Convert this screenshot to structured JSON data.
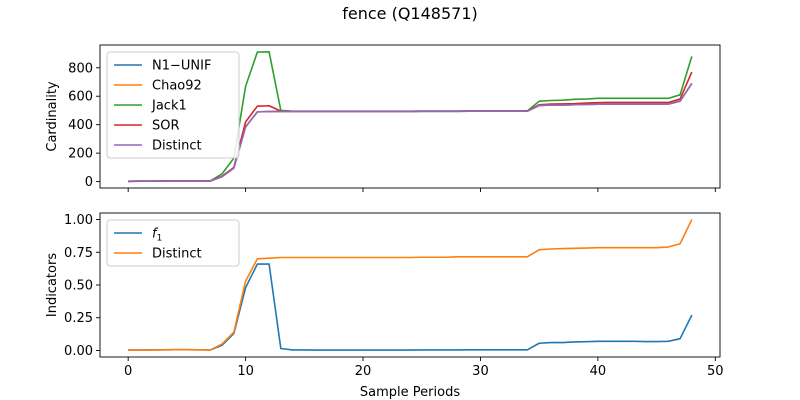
{
  "figure": {
    "suptitle": "fence (Q148571)",
    "shared_xlabel": "Sample Periods"
  },
  "chart_data": [
    {
      "type": "line",
      "title": "",
      "xlabel": "",
      "ylabel": "Cardinality",
      "xlim": [
        -2.4,
        50.4
      ],
      "ylim": [
        -45,
        960
      ],
      "xticks": [
        0,
        10,
        20,
        30,
        40,
        50
      ],
      "yticks": [
        0,
        200,
        400,
        600,
        800
      ],
      "grid": false,
      "legend_position": "upper-left",
      "x": [
        0,
        1,
        2,
        3,
        4,
        5,
        6,
        7,
        8,
        9,
        10,
        11,
        12,
        13,
        14,
        15,
        16,
        17,
        18,
        19,
        20,
        21,
        22,
        23,
        24,
        25,
        26,
        27,
        28,
        29,
        30,
        31,
        32,
        33,
        34,
        35,
        36,
        37,
        38,
        39,
        40,
        41,
        42,
        43,
        44,
        45,
        46,
        47,
        48
      ],
      "series": [
        {
          "name": "N1−UNIF",
          "color": "#1f77b4",
          "values": [
            2,
            3,
            3,
            4,
            5,
            5,
            5,
            4,
            35,
            95,
            385,
            490,
            492,
            493,
            493,
            493,
            493,
            493,
            493,
            493,
            493,
            493,
            493,
            493,
            493,
            494,
            494,
            494,
            494,
            495,
            495,
            495,
            495,
            495,
            495,
            535,
            538,
            538,
            540,
            542,
            544,
            545,
            545,
            545,
            545,
            545,
            545,
            565,
            690
          ]
        },
        {
          "name": "Chao92",
          "color": "#ff7f0e",
          "values": [
            2,
            3,
            3,
            4,
            5,
            5,
            5,
            4,
            35,
            95,
            385,
            490,
            492,
            493,
            493,
            493,
            493,
            493,
            493,
            493,
            493,
            493,
            493,
            493,
            493,
            494,
            494,
            494,
            494,
            495,
            495,
            495,
            495,
            495,
            495,
            535,
            538,
            538,
            540,
            542,
            544,
            545,
            545,
            545,
            545,
            545,
            545,
            565,
            690
          ]
        },
        {
          "name": "Jack1",
          "color": "#2ca02c",
          "values": [
            3,
            4,
            4,
            5,
            6,
            6,
            6,
            5,
            55,
            165,
            670,
            910,
            912,
            500,
            495,
            495,
            495,
            495,
            495,
            495,
            495,
            495,
            495,
            495,
            495,
            496,
            496,
            496,
            496,
            497,
            497,
            497,
            497,
            497,
            497,
            565,
            570,
            572,
            578,
            580,
            585,
            585,
            585,
            585,
            585,
            585,
            585,
            610,
            880
          ]
        },
        {
          "name": "SOR",
          "color": "#d62728",
          "values": [
            2,
            3,
            3,
            4,
            5,
            5,
            5,
            4,
            38,
            100,
            420,
            530,
            533,
            495,
            494,
            494,
            494,
            494,
            494,
            494,
            494,
            494,
            494,
            494,
            494,
            495,
            495,
            495,
            495,
            496,
            496,
            496,
            496,
            496,
            496,
            540,
            545,
            546,
            548,
            552,
            555,
            556,
            556,
            556,
            556,
            556,
            556,
            580,
            770
          ]
        },
        {
          "name": "Distinct",
          "color": "#9467bd",
          "values": [
            2,
            3,
            3,
            4,
            5,
            5,
            5,
            4,
            35,
            95,
            385,
            490,
            492,
            493,
            493,
            493,
            493,
            493,
            493,
            493,
            493,
            493,
            493,
            493,
            493,
            494,
            494,
            494,
            494,
            495,
            495,
            495,
            495,
            495,
            495,
            535,
            538,
            538,
            540,
            542,
            544,
            545,
            545,
            545,
            545,
            545,
            545,
            565,
            690
          ]
        }
      ]
    },
    {
      "type": "line",
      "title": "",
      "xlabel": "Sample Periods",
      "ylabel": "Indicators",
      "xlim": [
        -2.4,
        50.4
      ],
      "ylim": [
        -0.05,
        1.05
      ],
      "xticks": [
        0,
        10,
        20,
        30,
        40,
        50
      ],
      "yticks": [
        0.0,
        0.25,
        0.5,
        0.75,
        1.0
      ],
      "ytick_labels": [
        "0.00",
        "0.25",
        "0.50",
        "0.75",
        "1.00"
      ],
      "grid": false,
      "legend_position": "upper-left",
      "x": [
        0,
        1,
        2,
        3,
        4,
        5,
        6,
        7,
        8,
        9,
        10,
        11,
        12,
        13,
        14,
        15,
        16,
        17,
        18,
        19,
        20,
        21,
        22,
        23,
        24,
        25,
        26,
        27,
        28,
        29,
        30,
        31,
        32,
        33,
        34,
        35,
        36,
        37,
        38,
        39,
        40,
        41,
        42,
        43,
        44,
        45,
        46,
        47,
        48
      ],
      "series": [
        {
          "name": "f",
          "name_subscript": "1",
          "color": "#1f77b4",
          "values": [
            0.003,
            0.003,
            0.004,
            0.005,
            0.006,
            0.006,
            0.005,
            0.004,
            0.04,
            0.13,
            0.48,
            0.66,
            0.66,
            0.015,
            0.004,
            0.004,
            0.003,
            0.003,
            0.003,
            0.003,
            0.003,
            0.003,
            0.003,
            0.003,
            0.003,
            0.004,
            0.004,
            0.004,
            0.004,
            0.005,
            0.005,
            0.005,
            0.005,
            0.005,
            0.005,
            0.055,
            0.06,
            0.06,
            0.065,
            0.067,
            0.07,
            0.07,
            0.07,
            0.07,
            0.068,
            0.068,
            0.07,
            0.09,
            0.27
          ]
        },
        {
          "name": "Distinct",
          "name_subscript": "",
          "color": "#ff7f0e",
          "values": [
            0.003,
            0.003,
            0.004,
            0.005,
            0.006,
            0.006,
            0.005,
            0.004,
            0.05,
            0.14,
            0.53,
            0.7,
            0.705,
            0.71,
            0.71,
            0.71,
            0.71,
            0.71,
            0.71,
            0.71,
            0.71,
            0.71,
            0.71,
            0.71,
            0.71,
            0.712,
            0.712,
            0.712,
            0.715,
            0.715,
            0.715,
            0.715,
            0.715,
            0.715,
            0.715,
            0.77,
            0.775,
            0.778,
            0.78,
            0.782,
            0.785,
            0.785,
            0.785,
            0.785,
            0.785,
            0.785,
            0.79,
            0.815,
            1.0
          ]
        }
      ]
    }
  ]
}
